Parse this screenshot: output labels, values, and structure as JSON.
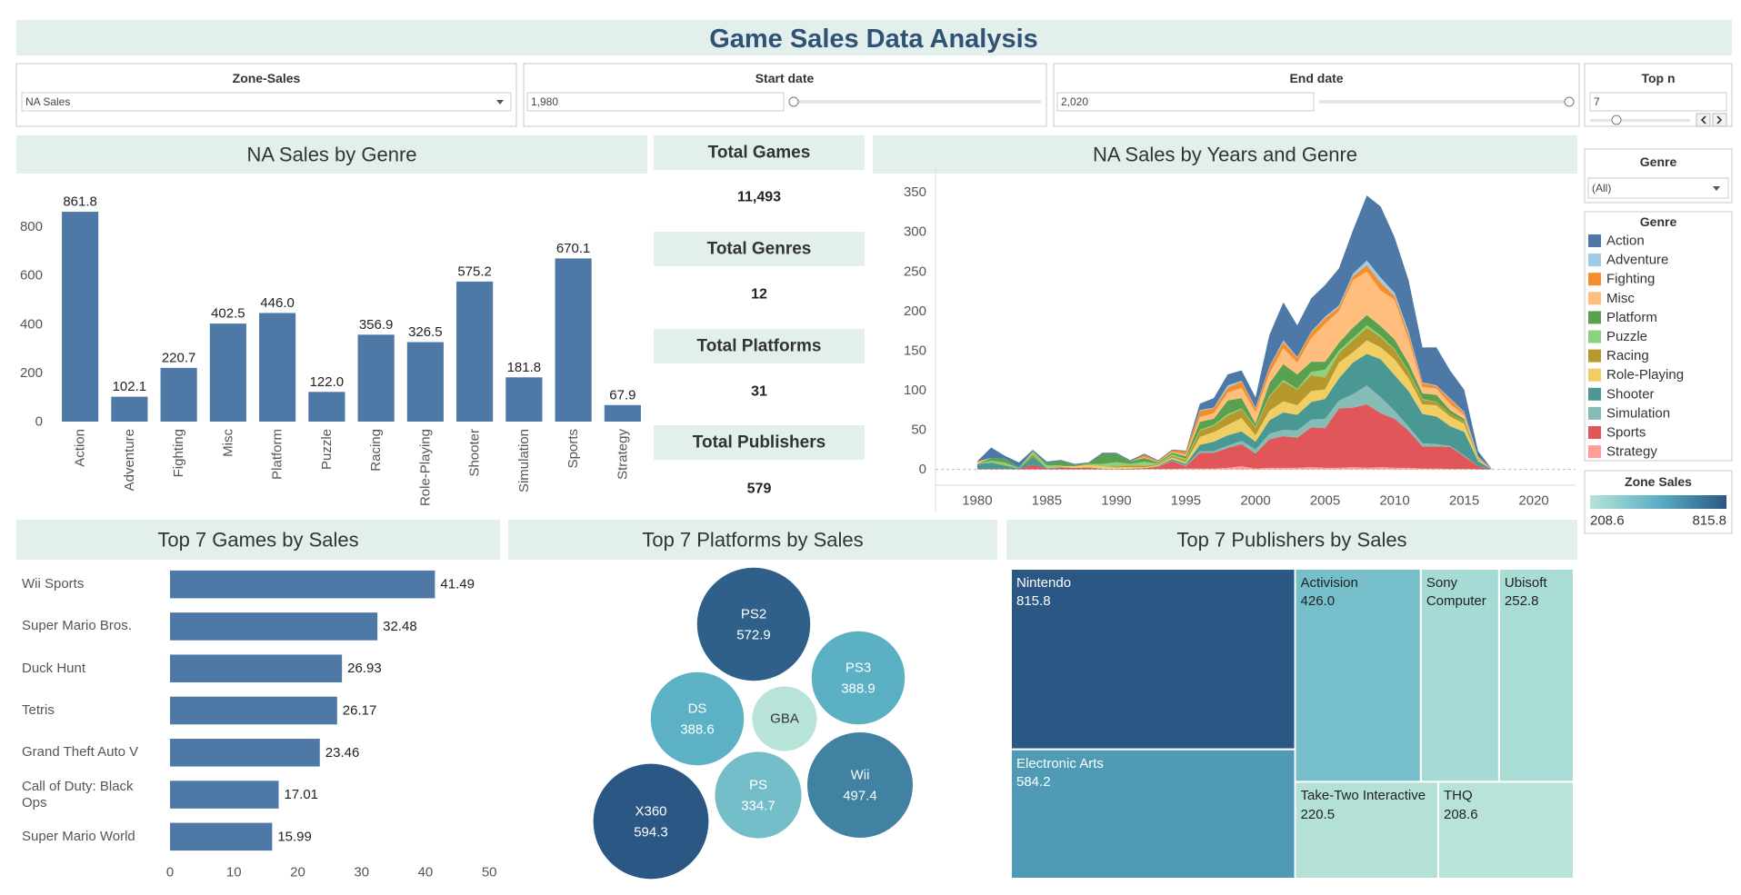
{
  "header": {
    "title": "Game Sales Data Analysis"
  },
  "filters": {
    "zone_sales": {
      "label": "Zone-Sales",
      "value": "NA Sales"
    },
    "start_date": {
      "label": "Start date",
      "value": "1,980"
    },
    "end_date": {
      "label": "End date",
      "value": "2,020"
    },
    "top_n": {
      "label": "Top n",
      "value": "7"
    },
    "genre": {
      "label": "Genre",
      "value": "(All)"
    }
  },
  "kpis": [
    {
      "label": "Total Games",
      "value": "11,493"
    },
    {
      "label": "Total Genres",
      "value": "12"
    },
    {
      "label": "Total Platforms",
      "value": "31"
    },
    {
      "label": "Total Publishers",
      "value": "579"
    }
  ],
  "chart_data": [
    {
      "type": "bar",
      "title": "NA Sales by Genre",
      "categories": [
        "Action",
        "Adventure",
        "Fighting",
        "Misc",
        "Platform",
        "Puzzle",
        "Racing",
        "Role-Playing",
        "Shooter",
        "Simulation",
        "Sports",
        "Strategy"
      ],
      "values": [
        861.8,
        102.1,
        220.7,
        402.5,
        446.0,
        122.0,
        356.9,
        326.5,
        575.2,
        181.8,
        670.1,
        67.9
      ],
      "value_labels": [
        "861.8",
        "102.1",
        "220.7",
        "402.5",
        "446.0",
        "122.0",
        "356.9",
        "326.5",
        "575.2",
        "181.8",
        "670.1",
        "67.9"
      ],
      "color": "#4e79a7",
      "ylim": [
        0,
        1000
      ],
      "yticks": [
        0,
        200,
        400,
        600,
        800
      ]
    },
    {
      "type": "area",
      "title": "NA Sales by Years and Genre",
      "legend_title": "Genre",
      "x": [
        1980,
        1981,
        1982,
        1983,
        1984,
        1985,
        1986,
        1987,
        1988,
        1989,
        1990,
        1991,
        1992,
        1993,
        1994,
        1995,
        1996,
        1997,
        1998,
        1999,
        2000,
        2001,
        2002,
        2003,
        2004,
        2005,
        2006,
        2007,
        2008,
        2009,
        2010,
        2011,
        2012,
        2013,
        2014,
        2015,
        2016,
        2017,
        2018,
        2019,
        2020
      ],
      "series": [
        {
          "name": "Action",
          "color": "#4e79a7",
          "values": [
            0.3,
            13,
            3.5,
            6,
            1.2,
            2,
            1,
            1,
            0.9,
            2,
            1,
            1.5,
            1.4,
            1,
            1,
            1,
            8,
            12,
            14,
            13,
            13,
            40,
            48,
            40,
            42,
            40,
            47,
            55,
            82,
            90,
            70,
            65,
            44,
            48,
            35,
            28,
            7,
            0,
            0,
            0,
            0
          ]
        },
        {
          "name": "Adventure",
          "color": "#a0cbe8",
          "values": [
            0,
            0,
            0,
            0,
            0,
            0,
            0,
            0,
            0,
            0,
            0,
            0,
            0,
            0,
            0,
            0,
            1,
            1,
            3,
            1,
            1,
            1,
            2,
            1,
            1,
            2,
            2,
            3,
            6,
            6,
            4,
            3,
            1,
            1,
            1,
            1,
            0.3,
            0,
            0,
            0,
            0
          ]
        },
        {
          "name": "Fighting",
          "color": "#f28e2b",
          "values": [
            1,
            0,
            0,
            0,
            0,
            0,
            0,
            0,
            0,
            0,
            0,
            0,
            3,
            1,
            2,
            4,
            8,
            6,
            6,
            8,
            5,
            8,
            8,
            6,
            7,
            7,
            5,
            5,
            8,
            10,
            5,
            7,
            5,
            3,
            6,
            3,
            1,
            0,
            0,
            0,
            0
          ]
        },
        {
          "name": "Misc",
          "color": "#ffbe7d",
          "values": [
            2.5,
            0,
            0,
            0,
            0,
            0,
            0,
            0,
            0,
            0,
            0,
            0,
            1,
            0.6,
            1,
            2,
            6,
            7,
            10,
            13,
            14,
            12,
            20,
            15,
            30,
            48,
            40,
            60,
            55,
            45,
            50,
            30,
            8,
            8,
            8,
            5,
            1,
            0,
            0,
            0,
            0
          ]
        },
        {
          "name": "Platform",
          "color": "#59a14f",
          "values": [
            0,
            3.6,
            5,
            1,
            1,
            2.8,
            6,
            2,
            1,
            12,
            11,
            3,
            5,
            1.5,
            2,
            3,
            10,
            8,
            17,
            13,
            4,
            16,
            20,
            18,
            13,
            10,
            10,
            13,
            13,
            12,
            12,
            10,
            7,
            9,
            4,
            3,
            1,
            0,
            0,
            0,
            0
          ]
        },
        {
          "name": "Puzzle",
          "color": "#8cd17d",
          "values": [
            0,
            2,
            3,
            0.4,
            3.5,
            3.5,
            0,
            0,
            0.5,
            3,
            5,
            2,
            5,
            1,
            2,
            1.6,
            1,
            1,
            2,
            1,
            1,
            1,
            2,
            1,
            4,
            10,
            3,
            3,
            3,
            2,
            1,
            1,
            1,
            0.2,
            0.1,
            0.1,
            0,
            0,
            0,
            0,
            0
          ]
        },
        {
          "name": "Racing",
          "color": "#b6992d",
          "values": [
            0,
            0.5,
            1,
            0,
            3,
            0,
            1,
            0,
            1,
            0,
            1.5,
            2,
            2,
            1,
            2,
            3,
            8,
            8,
            12,
            11,
            10,
            18,
            25,
            20,
            20,
            15,
            12,
            15,
            16,
            13,
            12,
            8,
            6,
            4,
            4,
            3,
            0.5,
            0,
            0,
            0,
            0
          ]
        },
        {
          "name": "Role-Playing",
          "color": "#f1ce63",
          "values": [
            0,
            0,
            0,
            0,
            0,
            0,
            1,
            2,
            3,
            3,
            2,
            2,
            1,
            1,
            2,
            2,
            10,
            12,
            13,
            17,
            8,
            12,
            14,
            12,
            14,
            12,
            20,
            13,
            17,
            15,
            20,
            16,
            12,
            14,
            12,
            10,
            2,
            0,
            0,
            0,
            0
          ]
        },
        {
          "name": "Shooter",
          "color": "#499894",
          "values": [
            6,
            8,
            4,
            1,
            10,
            0.5,
            1,
            0,
            0.5,
            0.5,
            0,
            0,
            0,
            0.5,
            2,
            2,
            8,
            12,
            13,
            12,
            10,
            17,
            22,
            20,
            22,
            25,
            28,
            40,
            40,
            48,
            45,
            45,
            37,
            35,
            25,
            30,
            6,
            0,
            0,
            0,
            0
          ]
        },
        {
          "name": "Simulation",
          "color": "#86bcb6",
          "values": [
            0,
            0,
            0,
            0,
            0,
            0,
            0,
            0,
            0,
            0,
            0,
            0,
            0,
            0.5,
            0.5,
            1,
            2,
            2,
            3,
            4,
            5,
            7,
            8,
            9,
            10,
            12,
            10,
            17,
            24,
            20,
            10,
            5,
            4,
            3,
            1,
            1,
            0.2,
            0,
            0,
            0,
            0
          ]
        },
        {
          "name": "Sports",
          "color": "#e15759",
          "values": [
            0.5,
            0.5,
            0.5,
            0.3,
            6,
            1,
            2,
            2,
            2,
            0.5,
            0.5,
            1,
            1,
            3,
            10,
            3,
            20,
            20,
            25,
            28,
            19,
            36,
            40,
            38,
            50,
            50,
            75,
            75,
            80,
            68,
            62,
            47,
            28,
            28,
            28,
            16,
            4,
            0,
            0,
            0,
            0
          ]
        },
        {
          "name": "Strategy",
          "color": "#ff9d9a",
          "values": [
            0,
            0,
            0,
            0,
            0,
            0,
            0,
            0,
            0,
            0,
            0,
            0,
            0.5,
            0.5,
            0.5,
            1,
            1,
            1,
            2,
            4,
            1,
            2,
            2,
            2,
            3,
            2,
            2,
            3,
            2,
            3,
            2,
            2,
            1,
            1,
            0.5,
            0.5,
            0.1,
            0,
            0,
            0,
            0
          ]
        }
      ],
      "xlim": [
        1977,
        2023
      ],
      "xticks": [
        1980,
        1985,
        1990,
        1995,
        2000,
        2005,
        2010,
        2015,
        2020
      ],
      "ylim": [
        -20,
        368
      ],
      "yticks": [
        0,
        50,
        100,
        150,
        200,
        250,
        300,
        350
      ]
    },
    {
      "type": "bar",
      "orientation": "horizontal",
      "title": "Top 7 Games by Sales",
      "categories": [
        "Wii Sports",
        "Super Mario Bros.",
        "Duck Hunt",
        "Tetris",
        "Grand Theft Auto V",
        "Call of Duty: Black Ops",
        "Super Mario World"
      ],
      "values": [
        41.49,
        32.48,
        26.93,
        26.17,
        23.46,
        17.01,
        15.99
      ],
      "color": "#4e79a7",
      "xlim": [
        -1,
        51.4
      ],
      "xticks": [
        0,
        10,
        20,
        30,
        40,
        50
      ]
    },
    {
      "type": "bubble",
      "title": "Top 7 Platforms by Sales",
      "categories": [
        "PS2",
        "X360",
        "Wii",
        "PS3",
        "DS",
        "PS",
        "GBA"
      ],
      "values": [
        572.9,
        594.3,
        497.4,
        388.9,
        388.6,
        334.7,
        187
      ],
      "value_labels": [
        "572.9",
        "594.3",
        "497.4",
        "388.9",
        "388.6",
        "334.7",
        null
      ]
    },
    {
      "type": "treemap",
      "title": "Top 7 Publishers by Sales",
      "categories": [
        "Nintendo",
        "Electronic Arts",
        "Activision",
        "Sony Computer",
        "Ubisoft",
        "Take-Two Interactive",
        "THQ"
      ],
      "values": [
        815.8,
        584.2,
        426.0,
        265,
        252.8,
        220.5,
        208.6
      ],
      "value_labels": [
        "815.8",
        "584.2",
        "426.0",
        null,
        "252.8",
        "220.5",
        "208.6"
      ],
      "color_legend_title": "Zone Sales",
      "color_range": [
        208.6,
        815.8
      ]
    }
  ]
}
